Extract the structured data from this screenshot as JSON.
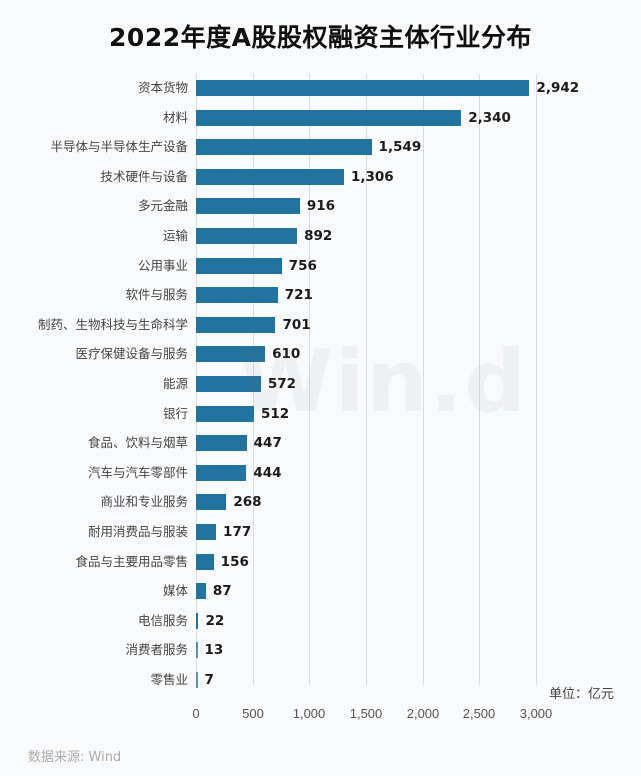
{
  "title": "2022年度A股股权融资主体行业分布",
  "unit_label": "单位：亿元",
  "source_label": "数据来源: Wind",
  "watermark": "Win.d",
  "colors": {
    "bar": "#22739e",
    "grid": "#d9dbe0",
    "background": "#f9fafc"
  },
  "chart_data": {
    "type": "bar",
    "orientation": "horizontal",
    "title": "2022年度A股股权融资主体行业分布",
    "xlabel": "",
    "ylabel": "",
    "unit": "亿元",
    "xlim": [
      0,
      3000
    ],
    "xticks": [
      "0",
      "500",
      "1,000",
      "1,500",
      "2,000",
      "2,500",
      "3,000"
    ],
    "grid": true,
    "legend": null,
    "categories": [
      "资本货物",
      "材料",
      "半导体与半导体生产设备",
      "技术硬件与设备",
      "多元金融",
      "运输",
      "公用事业",
      "软件与服务",
      "制药、生物科技与生命科学",
      "医疗保健设备与服务",
      "能源",
      "银行",
      "食品、饮料与烟草",
      "汽车与汽车零部件",
      "商业和专业服务",
      "耐用消费品与服装",
      "食品与主要用品零售",
      "媒体",
      "电信服务",
      "消费者服务",
      "零售业"
    ],
    "values": [
      2942,
      2340,
      1549,
      1306,
      916,
      892,
      756,
      721,
      701,
      610,
      572,
      512,
      447,
      444,
      268,
      177,
      156,
      87,
      22,
      13,
      7
    ],
    "value_labels": [
      "2,942",
      "2,340",
      "1,549",
      "1,306",
      "916",
      "892",
      "756",
      "721",
      "701",
      "610",
      "572",
      "512",
      "447",
      "444",
      "268",
      "177",
      "156",
      "87",
      "22",
      "13",
      "7"
    ],
    "source": "数据来源: Wind"
  }
}
